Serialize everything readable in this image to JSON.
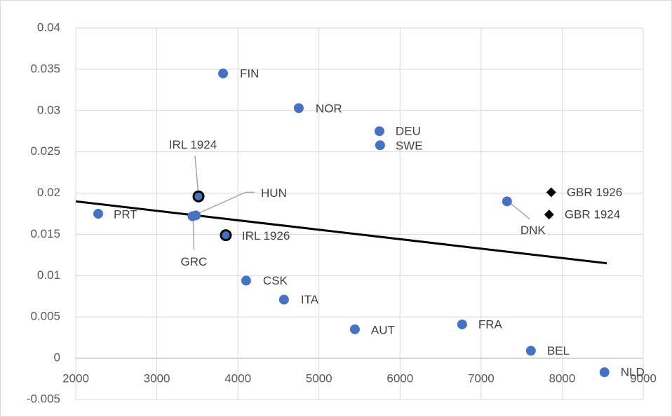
{
  "chart_data": {
    "type": "scatter",
    "points": [
      {
        "label": "PRT",
        "x": 2277,
        "y": 0.0175,
        "marker": "circle"
      },
      {
        "label": "FIN",
        "x": 3817,
        "y": 0.0345,
        "marker": "circle"
      },
      {
        "label": "NOR",
        "x": 4751,
        "y": 0.0303,
        "marker": "circle"
      },
      {
        "label": "DEU",
        "x": 5746,
        "y": 0.0275,
        "marker": "circle"
      },
      {
        "label": "SWE",
        "x": 5754,
        "y": 0.0258,
        "marker": "circle"
      },
      {
        "label": "IRL 1924",
        "x": 3514,
        "y": 0.0196,
        "marker": "circle-outlined"
      },
      {
        "label": "HUN",
        "x": 3480,
        "y": 0.0173,
        "marker": "circle"
      },
      {
        "label": "GRC",
        "x": 3440,
        "y": 0.0172,
        "marker": "circle"
      },
      {
        "label": "IRL 1926",
        "x": 3851,
        "y": 0.0149,
        "marker": "circle-outlined"
      },
      {
        "label": "DNK",
        "x": 7320,
        "y": 0.019,
        "marker": "circle"
      },
      {
        "label": "GBR 1926",
        "x": 7865,
        "y": 0.0201,
        "marker": "diamond"
      },
      {
        "label": "GBR 1924",
        "x": 7839,
        "y": 0.0174,
        "marker": "diamond"
      },
      {
        "label": "CSK",
        "x": 4102,
        "y": 0.0094,
        "marker": "circle"
      },
      {
        "label": "ITA",
        "x": 4569,
        "y": 0.0071,
        "marker": "circle"
      },
      {
        "label": "AUT",
        "x": 5443,
        "y": 0.0035,
        "marker": "circle"
      },
      {
        "label": "FRA",
        "x": 6766,
        "y": 0.0041,
        "marker": "circle"
      },
      {
        "label": "BEL",
        "x": 7614,
        "y": 0.0009,
        "marker": "circle"
      },
      {
        "label": "NLD",
        "x": 8522,
        "y": -0.0017,
        "marker": "circle"
      }
    ],
    "color": "#4472c4",
    "diamond_color": "#000000",
    "trendline": {
      "x": [
        2000,
        8550
      ],
      "y": [
        0.019,
        0.0115
      ],
      "color": "#000000"
    },
    "xlim": [
      2000,
      9000
    ],
    "xticks": [
      2000,
      3000,
      4000,
      5000,
      6000,
      7000,
      8000,
      9000
    ],
    "ylim": [
      -0.005,
      0.04
    ],
    "yticks": [
      -0.005,
      0,
      0.005,
      0.01,
      0.015,
      0.02,
      0.025,
      0.03,
      0.035,
      0.04
    ],
    "grid": true
  }
}
